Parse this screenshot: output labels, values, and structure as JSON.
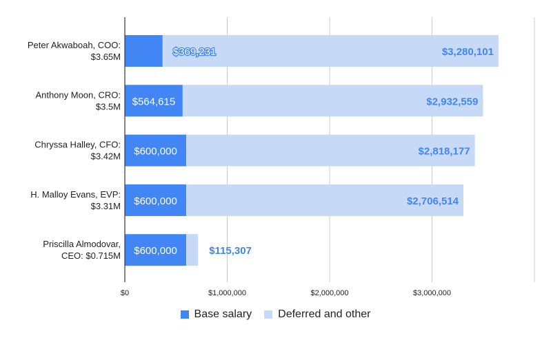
{
  "chart_data": {
    "type": "bar",
    "orientation": "horizontal",
    "stacked": true,
    "categories": [
      "Peter Akwaboah, COO: $3.65M",
      "Anthony Moon, CRO: $3.5M",
      "Chryssa Halley, CFO: $3.42M",
      "H. Malloy Evans, EVP: $3.31M",
      "Priscilla Almodovar, CEO: $0.715M"
    ],
    "category_lines": [
      [
        "Peter Akwaboah, COO:",
        "$3.65M"
      ],
      [
        "Anthony Moon, CRO:",
        "$3.5M"
      ],
      [
        "Chryssa Halley, CFO:",
        "$3.42M"
      ],
      [
        "H. Malloy Evans, EVP:",
        "$3.31M"
      ],
      [
        "Priscilla Almodovar,",
        "CEO: $0.715M"
      ]
    ],
    "series": [
      {
        "name": "Base salary",
        "color": "#4285f4",
        "values": [
          369231,
          564615,
          600000,
          600000,
          600000
        ],
        "labels": [
          "$369,231",
          "$564,615",
          "$600,000",
          "$600,000",
          "$600,000"
        ]
      },
      {
        "name": "Deferred and other",
        "color": "#c6d9f7",
        "values": [
          3280101,
          2932559,
          2818177,
          2706514,
          115307
        ],
        "labels": [
          "$3,280,101",
          "$2,932,559",
          "$2,818,177",
          "$2,706,514",
          "$115,307"
        ]
      }
    ],
    "xlim": [
      0,
      4000000
    ],
    "xticks": [
      0,
      1000000,
      2000000,
      3000000,
      4000000
    ],
    "xtick_labels": [
      "$0",
      "$1,000,000",
      "$2,000,000",
      "$3,000,000",
      ""
    ],
    "grid": true,
    "legend": "bottom"
  }
}
